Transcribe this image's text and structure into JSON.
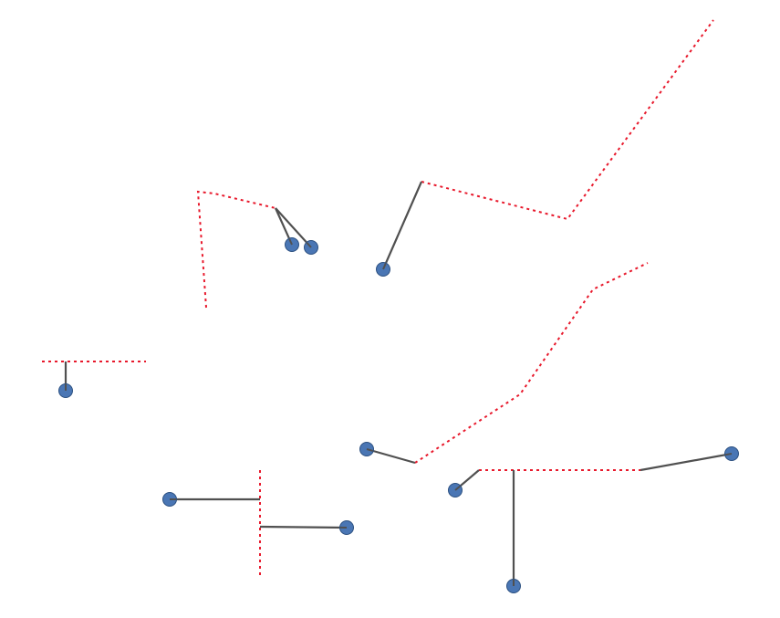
{
  "diagram": {
    "colors": {
      "route_line": "#e8192c",
      "connector": "#505050",
      "point_fill": "#4a76b4",
      "point_stroke": "#2c5080",
      "background": "#ffffff"
    }
  }
}
